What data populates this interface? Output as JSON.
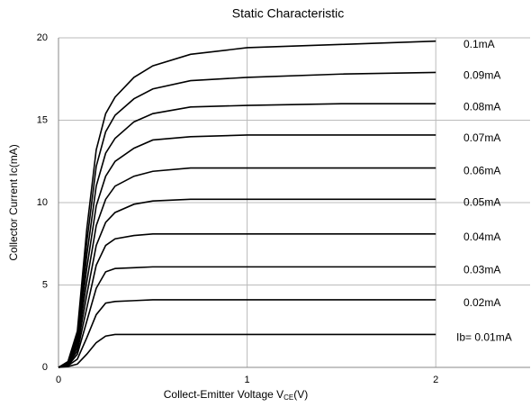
{
  "chart_data": {
    "type": "line",
    "title": "Static Characteristic",
    "x_label_parts": [
      "Collect-Emitter Voltage  V",
      "CE",
      "(V)"
    ],
    "y_label": "Collector Current  Ic(mA)",
    "x": [
      0,
      0.05,
      0.1,
      0.15,
      0.2,
      0.25,
      0.3,
      0.4,
      0.5,
      0.7,
      1.0,
      1.5,
      2.0
    ],
    "series": [
      {
        "name": "Ib= 0.01mA",
        "color": "#000000",
        "values": [
          0,
          0.05,
          0.2,
          0.8,
          1.5,
          1.9,
          2.0,
          2.0,
          2.0,
          2.0,
          2.0,
          2.0,
          2.0
        ]
      },
      {
        "name": "0.02mA",
        "color": "#000000",
        "values": [
          0,
          0.1,
          0.5,
          1.8,
          3.2,
          3.9,
          4.0,
          4.05,
          4.1,
          4.1,
          4.1,
          4.1,
          4.1
        ]
      },
      {
        "name": "0.03mA",
        "color": "#000000",
        "values": [
          0,
          0.1,
          0.8,
          2.8,
          4.8,
          5.8,
          6.0,
          6.05,
          6.1,
          6.1,
          6.1,
          6.1,
          6.1
        ]
      },
      {
        "name": "0.04mA",
        "color": "#000000",
        "values": [
          0,
          0.15,
          1.0,
          3.6,
          6.2,
          7.4,
          7.8,
          8.0,
          8.1,
          8.1,
          8.1,
          8.1,
          8.1
        ]
      },
      {
        "name": "0.05mA",
        "color": "#000000",
        "values": [
          0,
          0.2,
          1.2,
          4.4,
          7.4,
          8.8,
          9.4,
          9.9,
          10.1,
          10.2,
          10.2,
          10.2,
          10.2
        ]
      },
      {
        "name": "0.06mA",
        "color": "#000000",
        "values": [
          0,
          0.2,
          1.4,
          5.2,
          8.6,
          10.2,
          11.0,
          11.6,
          11.9,
          12.1,
          12.1,
          12.1,
          12.1
        ]
      },
      {
        "name": "0.07mA",
        "color": "#000000",
        "values": [
          0,
          0.25,
          1.6,
          6.0,
          9.8,
          11.6,
          12.5,
          13.3,
          13.8,
          14.0,
          14.1,
          14.1,
          14.1
        ]
      },
      {
        "name": "0.08mA",
        "color": "#000000",
        "values": [
          0,
          0.3,
          1.8,
          6.8,
          11.0,
          13.0,
          13.9,
          14.9,
          15.4,
          15.8,
          15.9,
          16.0,
          16.0
        ]
      },
      {
        "name": "0.09mA",
        "color": "#000000",
        "values": [
          0,
          0.3,
          2.0,
          7.6,
          12.2,
          14.3,
          15.3,
          16.3,
          16.9,
          17.4,
          17.6,
          17.8,
          17.9
        ]
      },
      {
        "name": "0.1mA",
        "color": "#000000",
        "values": [
          0,
          0.35,
          2.2,
          8.4,
          13.2,
          15.4,
          16.4,
          17.6,
          18.3,
          19.0,
          19.4,
          19.6,
          19.8
        ]
      }
    ],
    "xlim": [
      0,
      2.5
    ],
    "ylim": [
      0,
      20
    ],
    "xticks": [
      0,
      1,
      2
    ],
    "yticks": [
      0,
      5,
      10,
      15,
      20
    ],
    "grid": true
  }
}
